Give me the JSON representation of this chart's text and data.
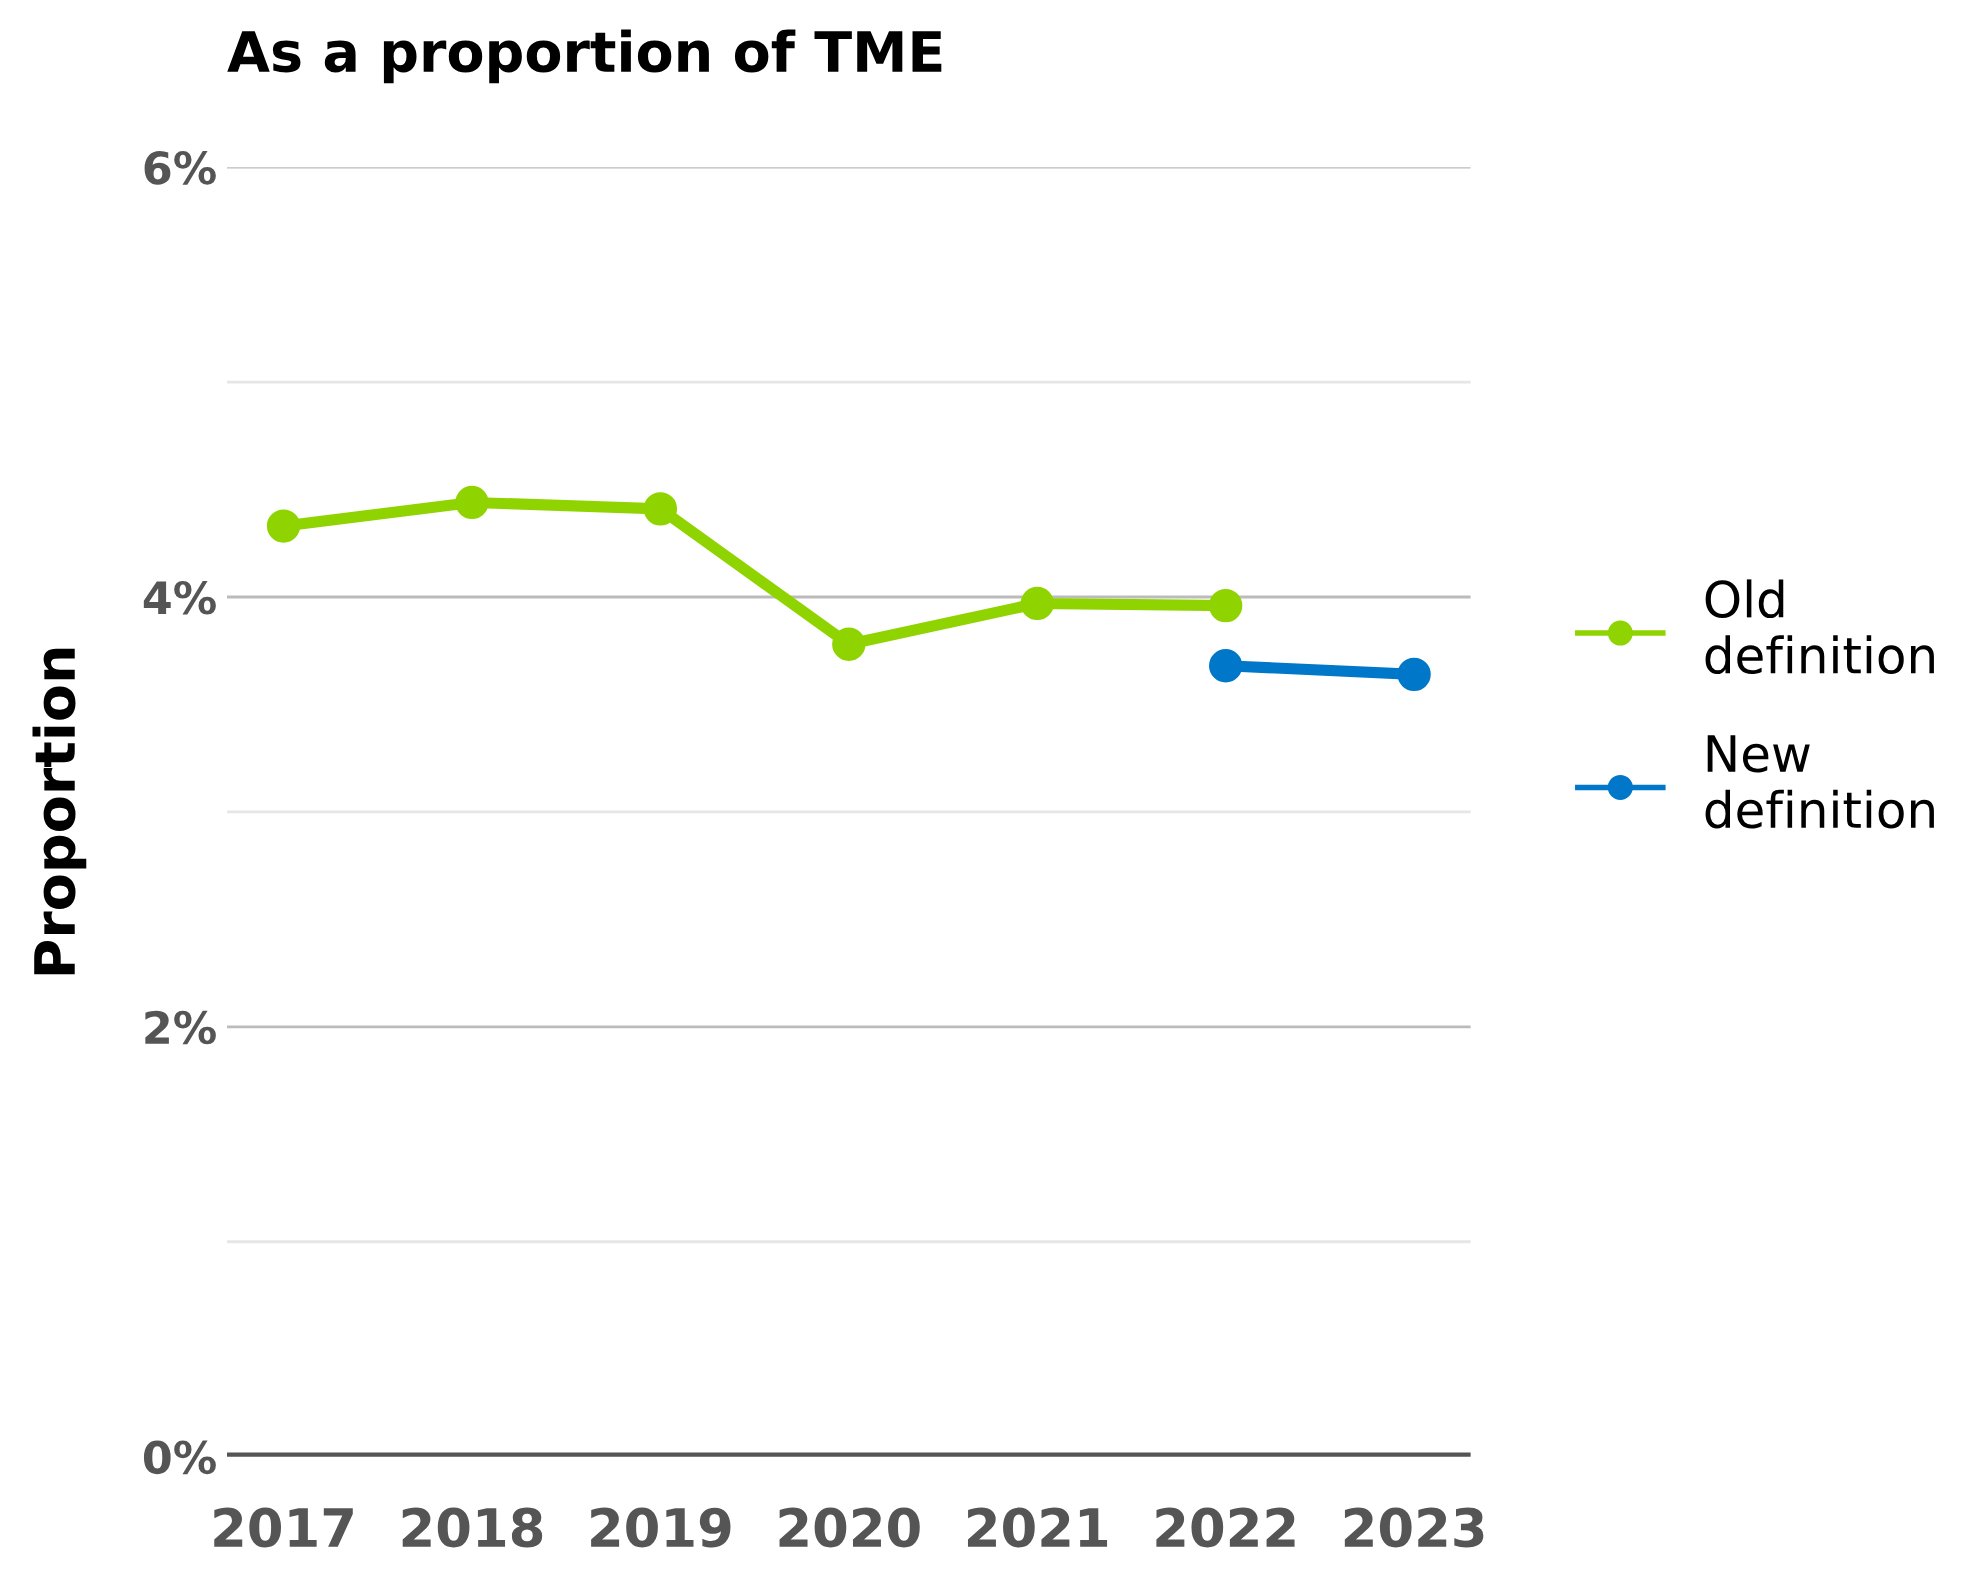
{
  "chart_data": {
    "type": "line",
    "title": "As a proportion of TME",
    "ylabel": "Proportion",
    "categories": [
      "2017",
      "2018",
      "2019",
      "2020",
      "2021",
      "2022",
      "2023"
    ],
    "series": [
      {
        "name": "Old definition",
        "color": "#8fd400",
        "values": [
          4.33,
          4.44,
          4.41,
          3.78,
          3.97,
          3.96,
          null
        ]
      },
      {
        "name": "New definition",
        "color": "#0077c8",
        "values": [
          null,
          null,
          null,
          null,
          null,
          3.68,
          3.64
        ]
      }
    ],
    "ylim": [
      0,
      6
    ],
    "yticks": [
      {
        "value": 0,
        "label": "0%"
      },
      {
        "value": 1,
        "label": null
      },
      {
        "value": 2,
        "label": "2%"
      },
      {
        "value": 3,
        "label": null
      },
      {
        "value": 4,
        "label": "4%"
      },
      {
        "value": 5,
        "label": null
      },
      {
        "value": 6,
        "label": "6%"
      }
    ],
    "grid": "y",
    "legend": "right",
    "marker": "circle",
    "line_style": "solid"
  }
}
